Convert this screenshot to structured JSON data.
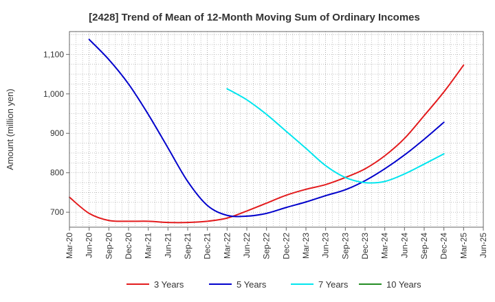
{
  "chart_data": {
    "type": "line",
    "title": "[2428]  Trend of Mean of 12-Month Moving Sum of Ordinary Incomes",
    "xlabel": "",
    "ylabel": "Amount (million yen)",
    "ylim": [
      662,
      1158
    ],
    "yticks": [
      700,
      800,
      900,
      1000,
      1100
    ],
    "ytick_labels": [
      "700",
      "800",
      "900",
      "1,000",
      "1,100"
    ],
    "x_categories": [
      "Mar-20",
      "Jun-20",
      "Sep-20",
      "Dec-20",
      "Mar-21",
      "Jun-21",
      "Sep-21",
      "Dec-21",
      "Mar-22",
      "Jun-22",
      "Sep-22",
      "Dec-22",
      "Mar-23",
      "Jun-23",
      "Sep-23",
      "Dec-23",
      "Mar-24",
      "Jun-24",
      "Sep-24",
      "Dec-24",
      "Mar-25",
      "Jun-25"
    ],
    "grid": true,
    "legend_position": "bottom",
    "series": [
      {
        "name": "3 Years",
        "color": "#e31a1c",
        "values": [
          738,
          697,
          679,
          677,
          677,
          674,
          674,
          677,
          685,
          703,
          723,
          743,
          758,
          770,
          788,
          810,
          843,
          887,
          945,
          1005,
          1073,
          null
        ]
      },
      {
        "name": "5 Years",
        "color": "#0000cc",
        "values": [
          null,
          1138,
          1087,
          1025,
          948,
          863,
          778,
          717,
          692,
          690,
          697,
          712,
          726,
          742,
          757,
          780,
          810,
          845,
          885,
          928,
          null,
          null
        ]
      },
      {
        "name": "7 Years",
        "color": "#00e5ee",
        "values": [
          null,
          null,
          null,
          null,
          null,
          null,
          null,
          null,
          1013,
          985,
          948,
          905,
          862,
          818,
          788,
          775,
          778,
          797,
          822,
          848,
          null,
          null
        ]
      },
      {
        "name": "10 Years",
        "color": "#228b22",
        "values": []
      }
    ]
  }
}
